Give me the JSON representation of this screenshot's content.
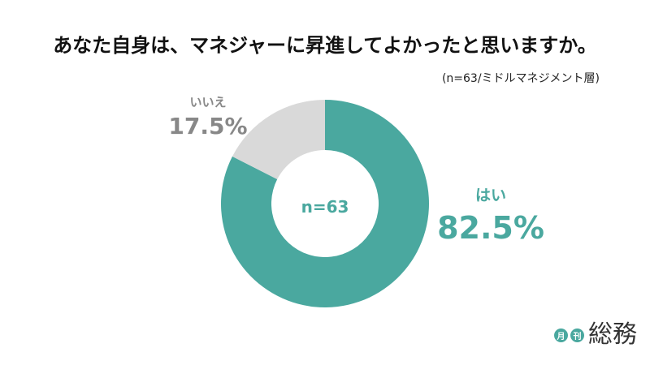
{
  "chart_data": {
    "type": "pie",
    "title": "あなた自身は、マネジャーに昇進してよかったと思いますか。",
    "subtitle": "(n=63/ミドルマネジメント層)",
    "center_label": "n=63",
    "slices": [
      {
        "label": "はい",
        "value": 82.5,
        "value_label": "82.5%",
        "color": "#4aa89f"
      },
      {
        "label": "いいえ",
        "value": 17.5,
        "value_label": "17.5%",
        "color": "#d9d9d9"
      }
    ]
  },
  "brand": {
    "badge_1": "月",
    "badge_2": "刊",
    "name": "総務",
    "accent": "#4aa89f"
  }
}
